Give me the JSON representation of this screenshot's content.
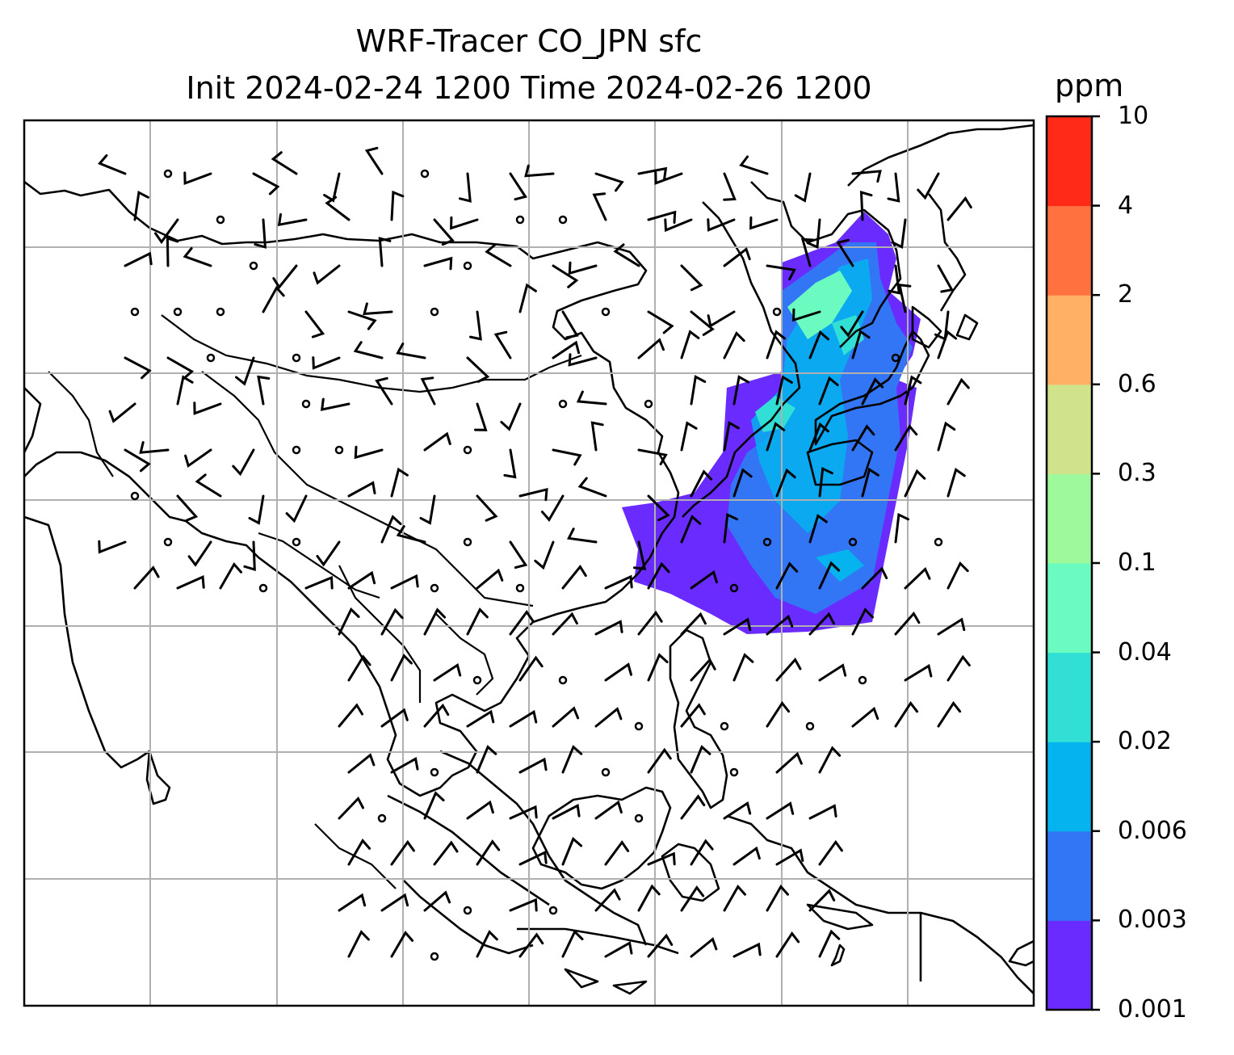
{
  "title": {
    "line1": "WRF-Tracer CO_JPN sfc",
    "line2": "Init 2024-02-24 1200 Time 2024-02-26 1200"
  },
  "colorbar": {
    "units": "ppm",
    "ticks": [
      "10",
      "4",
      "2",
      "0.6",
      "0.3",
      "0.1",
      "0.04",
      "0.02",
      "0.006",
      "0.003",
      "0.001"
    ],
    "colors": [
      "#6a2bff",
      "#3376f5",
      "#05b3ee",
      "#31dfd4",
      "#6bfbc0",
      "#9df99a",
      "#d1e38a",
      "#ffb065",
      "#ff7240",
      "#ff2b18"
    ]
  },
  "map": {
    "coastline_color": "#000000",
    "grid_color": "#b0b0b0",
    "barb_color": "#000000"
  }
}
